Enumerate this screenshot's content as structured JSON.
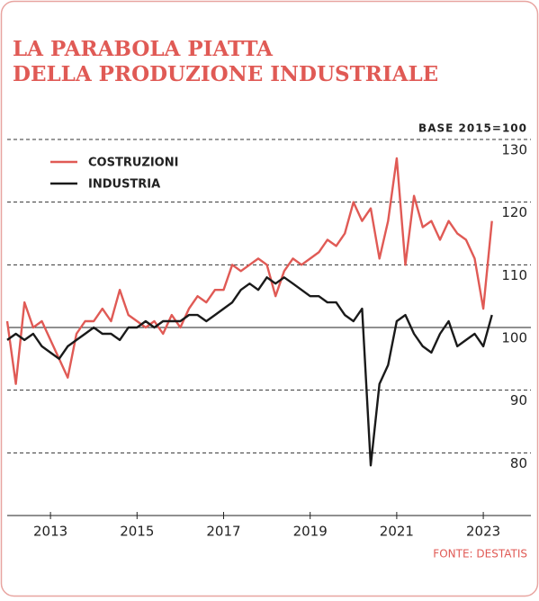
{
  "chart_data": {
    "type": "line",
    "title": [
      "LA PARABOLA PIATTA",
      "DELLA PRODUZIONE INDUSTRIALE"
    ],
    "note": "BASE 2015=100",
    "source": "FONTE: DESTATIS",
    "x": [
      2012,
      2012.2,
      2012.4,
      2012.6,
      2012.8,
      2013,
      2013.2,
      2013.4,
      2013.6,
      2013.8,
      2014,
      2014.2,
      2014.4,
      2014.6,
      2014.8,
      2015,
      2015.2,
      2015.4,
      2015.6,
      2015.8,
      2016,
      2016.2,
      2016.4,
      2016.6,
      2016.8,
      2017,
      2017.2,
      2017.4,
      2017.6,
      2017.8,
      2018,
      2018.2,
      2018.4,
      2018.6,
      2018.8,
      2019,
      2019.2,
      2019.4,
      2019.6,
      2019.8,
      2020,
      2020.2,
      2020.4,
      2020.6,
      2020.8,
      2021,
      2021.2,
      2021.4,
      2021.6,
      2021.8,
      2022,
      2022.2,
      2022.4,
      2022.6,
      2022.8,
      2023,
      2023.2
    ],
    "series": [
      {
        "name": "COSTRUZIONI",
        "color": "#e05a55",
        "values": [
          101,
          91,
          104,
          100,
          101,
          98,
          95,
          92,
          99,
          101,
          101,
          103,
          101,
          106,
          102,
          101,
          100,
          101,
          99,
          102,
          100,
          103,
          105,
          104,
          106,
          106,
          110,
          109,
          110,
          111,
          110,
          105,
          109,
          111,
          110,
          111,
          112,
          114,
          113,
          115,
          120,
          117,
          119,
          111,
          117,
          127,
          110,
          121,
          116,
          117,
          114,
          117,
          115,
          114,
          111,
          103,
          117
        ]
      },
      {
        "name": "INDUSTRIA",
        "color": "#1a1a1a",
        "values": [
          98,
          99,
          98,
          99,
          97,
          96,
          95,
          97,
          98,
          99,
          100,
          99,
          99,
          98,
          100,
          100,
          101,
          100,
          101,
          101,
          101,
          102,
          102,
          101,
          102,
          103,
          104,
          106,
          107,
          106,
          108,
          107,
          108,
          107,
          106,
          105,
          105,
          104,
          104,
          102,
          101,
          103,
          78,
          91,
          94,
          101,
          102,
          99,
          97,
          96,
          99,
          101,
          97,
          98,
          99,
          97,
          102
        ]
      }
    ],
    "xlim": [
      2012,
      2024.1
    ],
    "xticks": [
      2013,
      2015,
      2017,
      2019,
      2021,
      2023
    ],
    "ylim": [
      70,
      130
    ],
    "yticks": [
      80,
      90,
      100,
      110,
      120,
      130
    ],
    "reference_line": 100,
    "grid": true,
    "legend": "upper left"
  }
}
